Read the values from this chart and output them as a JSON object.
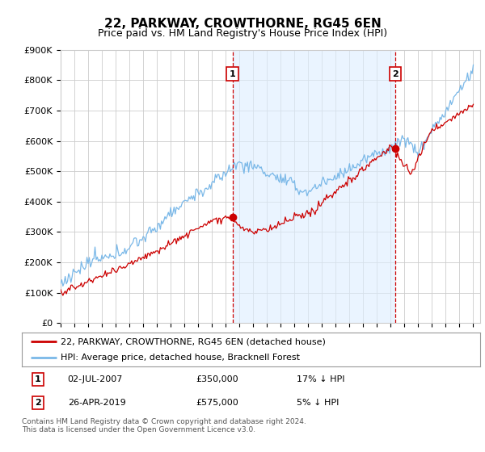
{
  "title": "22, PARKWAY, CROWTHORNE, RG45 6EN",
  "subtitle": "Price paid vs. HM Land Registry's House Price Index (HPI)",
  "ylim": [
    0,
    900000
  ],
  "yticks": [
    0,
    100000,
    200000,
    300000,
    400000,
    500000,
    600000,
    700000,
    800000,
    900000
  ],
  "ytick_labels": [
    "£0",
    "£100K",
    "£200K",
    "£300K",
    "£400K",
    "£500K",
    "£600K",
    "£700K",
    "£800K",
    "£900K"
  ],
  "hpi_color": "#7ab8e8",
  "sale_color": "#cc0000",
  "dashed_color": "#cc0000",
  "shade_color": "#ddeeff",
  "marker1_date": 2007.5,
  "marker2_date": 2019.33,
  "sale1_price": 350000,
  "sale2_price": 575000,
  "xlim_start": 1995,
  "xlim_end": 2025.5,
  "legend_sale_label": "22, PARKWAY, CROWTHORNE, RG45 6EN (detached house)",
  "legend_hpi_label": "HPI: Average price, detached house, Bracknell Forest",
  "ann1_date": "02-JUL-2007",
  "ann1_price": "£350,000",
  "ann1_hpi": "17% ↓ HPI",
  "ann2_date": "26-APR-2019",
  "ann2_price": "£575,000",
  "ann2_hpi": "5% ↓ HPI",
  "footer": "Contains HM Land Registry data © Crown copyright and database right 2024.\nThis data is licensed under the Open Government Licence v3.0.",
  "bg_color": "#ffffff",
  "grid_color": "#cccccc",
  "title_fontsize": 11,
  "subtitle_fontsize": 9,
  "tick_fontsize": 8,
  "legend_fontsize": 8,
  "ann_fontsize": 8
}
